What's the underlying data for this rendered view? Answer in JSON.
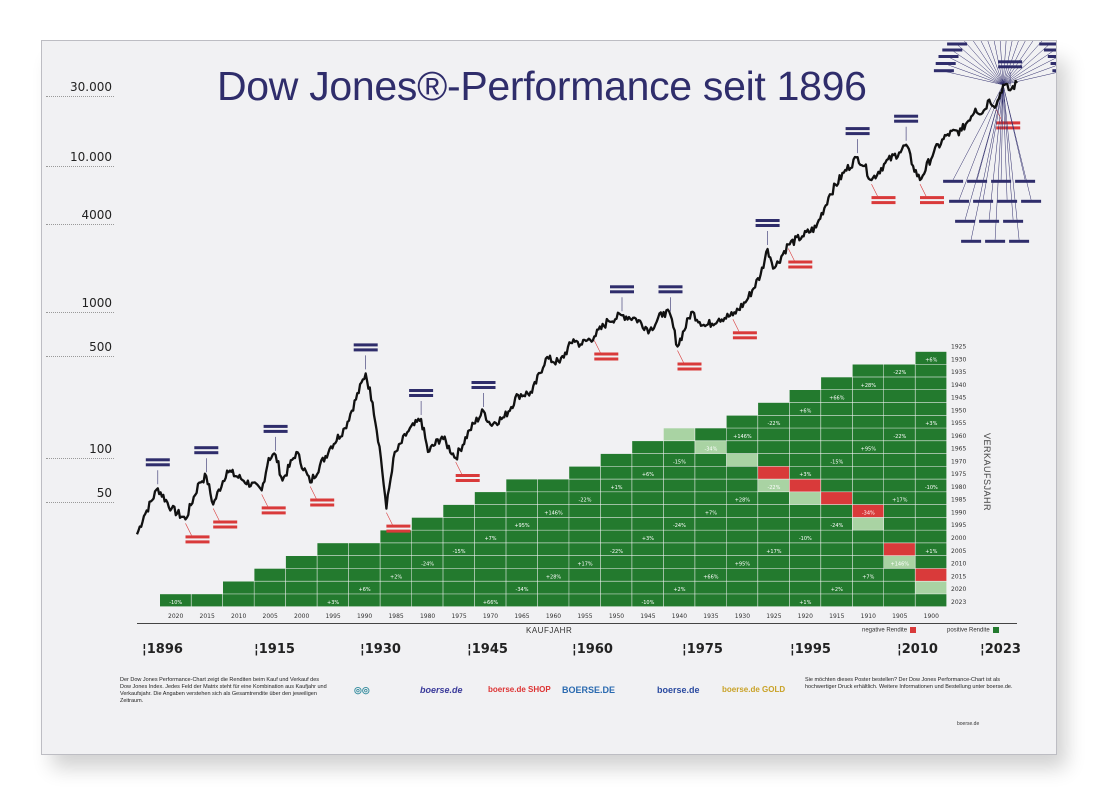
{
  "title": "Dow Jones®-Performance seit 1896",
  "chart_data": {
    "type": "line",
    "title": "Dow Jones®-Performance seit 1896",
    "scale": "log",
    "ylim": [
      25,
      50000
    ],
    "xlim": [
      1892,
      2026
    ],
    "y_ticks": [
      {
        "value": 30000,
        "label": "30.000"
      },
      {
        "value": 10000,
        "label": "10.000"
      },
      {
        "value": 4000,
        "label": "4000"
      },
      {
        "value": 1000,
        "label": "1000"
      },
      {
        "value": 500,
        "label": "500"
      },
      {
        "value": 100,
        "label": "100"
      },
      {
        "value": 50,
        "label": "50"
      }
    ],
    "x_ticks": [
      "1896",
      "1915",
      "1930",
      "1945",
      "1960",
      "1975",
      "1995",
      "2010",
      "2023"
    ],
    "series": [
      {
        "x": [
          1896,
          1897,
          1899,
          1901,
          1903,
          1905,
          1906,
          1907,
          1909,
          1911,
          1914,
          1915,
          1916,
          1917,
          1919,
          1921,
          1924,
          1926,
          1929,
          1930,
          1931,
          1932,
          1933,
          1935,
          1937,
          1938,
          1940,
          1942,
          1944,
          1946,
          1947,
          1949,
          1951,
          1953,
          1955,
          1957,
          1959,
          1960,
          1962,
          1964,
          1966,
          1968,
          1970,
          1972,
          1973,
          1974,
          1976,
          1978,
          1980,
          1982,
          1984,
          1986,
          1987,
          1988,
          1990,
          1992,
          1994,
          1996,
          1998,
          2000,
          2001,
          2002,
          2004,
          2006,
          2007,
          2008,
          2009,
          2011,
          2013,
          2015,
          2017,
          2018,
          2019,
          2020,
          2021,
          2022,
          2023
        ],
        "y": [
          30,
          40,
          62,
          45,
          38,
          68,
          75,
          48,
          82,
          72,
          60,
          100,
          105,
          70,
          110,
          68,
          120,
          160,
          380,
          240,
          120,
          45,
          100,
          150,
          185,
          110,
          140,
          100,
          155,
          210,
          170,
          190,
          270,
          280,
          480,
          450,
          650,
          600,
          680,
          870,
          950,
          900,
          750,
          1000,
          950,
          580,
          1000,
          800,
          900,
          950,
          1200,
          1800,
          2700,
          2000,
          2900,
          3300,
          3800,
          6400,
          9000,
          11500,
          10000,
          8000,
          10500,
          12400,
          14000,
          10000,
          8000,
          12500,
          16500,
          17500,
          24700,
          23000,
          28500,
          26000,
          36000,
          33000,
          37000
        ]
      }
    ],
    "annotations": {
      "highs": [
        "1899",
        "1906",
        "1916",
        "1929",
        "1937",
        "1946",
        "1966",
        "1973",
        "1987",
        "2000",
        "2007",
        "2022"
      ],
      "lows": [
        "1903",
        "1907",
        "1914",
        "1921",
        "1932",
        "1942",
        "1962",
        "1974",
        "1982",
        "1990",
        "2002",
        "2009",
        "2020"
      ]
    },
    "matrix": {
      "xlabel": "KAUFJAHR",
      "ylabel": "VERKAUFSJAHR",
      "purchase_years": [
        "2020",
        "2015",
        "2010",
        "2005",
        "2000",
        "1995",
        "1990",
        "1985",
        "1980",
        "1975",
        "1970",
        "1965",
        "1960",
        "1955",
        "1950",
        "1945",
        "1940",
        "1935",
        "1930",
        "1925",
        "1920",
        "1915",
        "1910",
        "1905",
        "1900"
      ],
      "sale_years": [
        "1925",
        "1930",
        "1935",
        "1940",
        "1945",
        "1950",
        "1955",
        "1960",
        "1965",
        "1970",
        "1975",
        "1980",
        "1985",
        "1990",
        "1995",
        "2000",
        "2005",
        "2010",
        "2015",
        "2020",
        "2023"
      ],
      "cells_visible": [
        "-10%",
        "+3%",
        "+6%",
        "+2%",
        "-24%",
        "-15%",
        "+66%",
        "+7%",
        "-34%",
        "+95%",
        "+28%",
        "+146%",
        "+17%",
        "-22%",
        "-22%",
        "+1%"
      ],
      "legend": {
        "negative": "negative Rendite",
        "positive": "positive Rendite"
      },
      "negative_color": "#d93a3a",
      "negative_light_color": "#f0a0a0",
      "positive_color": "#237a2e",
      "positive_light_color": "#a9d3a3"
    },
    "line_color": "#111111"
  },
  "footer": {
    "left_text": "Der Dow Jones Performance-Chart zeigt die Renditen beim Kauf und Verkauf des Dow Jones Index. Jedes Feld der Matrix steht für eine Kombination aus Kaufjahr und Verkaufsjahr. Die Angaben verstehen sich als Gesamtrendite über den jeweiligen Zeitraum.",
    "right_text": "Sie möchten dieses Poster bestellen? Der Dow Jones Performance-Chart ist als hochwertiger Druck erhältlich. Weitere Informationen und Bestellung unter boerse.de.",
    "logos": [
      "boerse.de",
      "boerse.de SHOP",
      "BOERSE.DE",
      "boerse.de",
      "boerse.de GOLD"
    ],
    "credit": "boerse.de"
  }
}
